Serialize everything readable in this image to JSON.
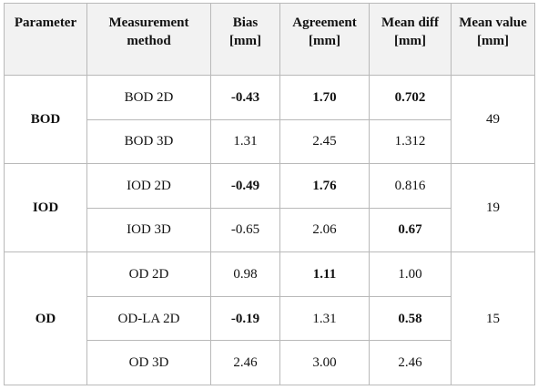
{
  "table": {
    "headers": [
      {
        "line1": "Parameter",
        "line2": ""
      },
      {
        "line1": "Measurement",
        "line2": "method"
      },
      {
        "line1": "Bias",
        "line2": "[mm]"
      },
      {
        "line1": "Agreement",
        "line2": "[mm]"
      },
      {
        "line1": "Mean diff",
        "line2": "[mm]"
      },
      {
        "line1": "Mean value",
        "line2": "[mm]"
      }
    ],
    "groups": [
      {
        "parameter": "BOD",
        "mean_value": "49",
        "rows": [
          {
            "method": "BOD 2D",
            "bias": "-0.43",
            "agreement": "1.70",
            "mean_diff": "0.702"
          },
          {
            "method": "BOD 3D",
            "bias": "1.31",
            "agreement": "2.45",
            "mean_diff": "1.312"
          }
        ]
      },
      {
        "parameter": "IOD",
        "mean_value": "19",
        "rows": [
          {
            "method": "IOD 2D",
            "bias": "-0.49",
            "agreement": "1.76",
            "mean_diff": "0.816"
          },
          {
            "method": "IOD 3D",
            "bias": "-0.65",
            "agreement": "2.06",
            "mean_diff": "0.67"
          }
        ]
      },
      {
        "parameter": "OD",
        "mean_value": "15",
        "rows": [
          {
            "method": "OD 2D",
            "bias": "0.98",
            "agreement": "1.11",
            "mean_diff": "1.00"
          },
          {
            "method": "OD-LA 2D",
            "bias": "-0.19",
            "agreement": "1.31",
            "mean_diff": "0.58"
          },
          {
            "method": "OD 3D",
            "bias": "2.46",
            "agreement": "3.00",
            "mean_diff": "2.46"
          }
        ]
      }
    ]
  }
}
